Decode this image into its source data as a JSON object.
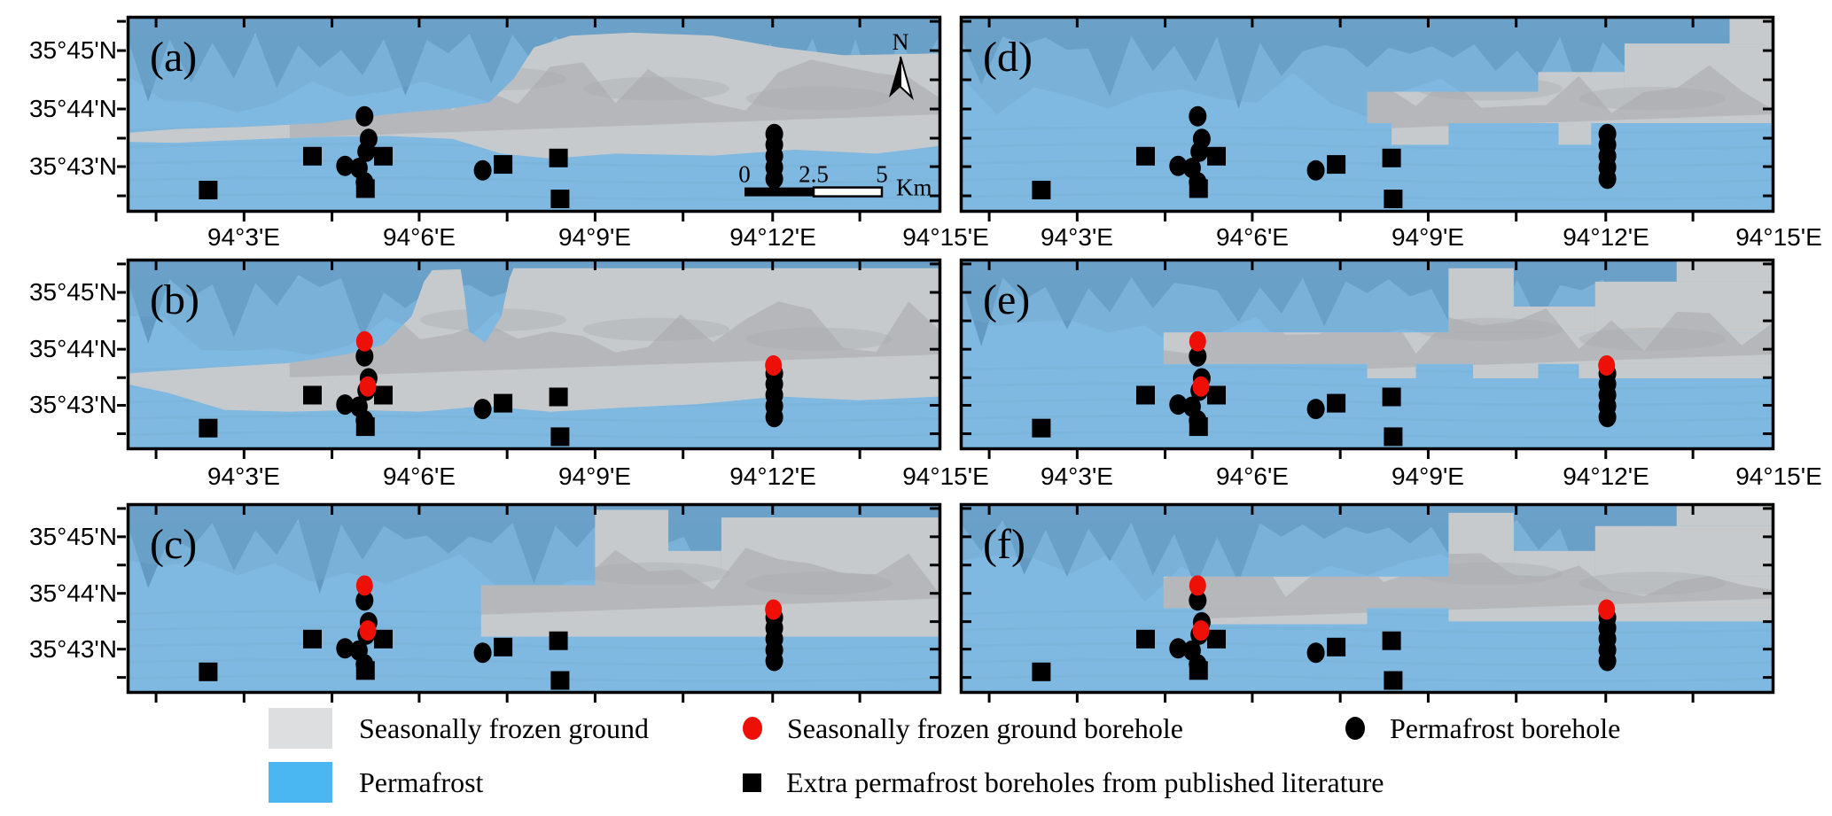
{
  "figure": {
    "description": "Six-panel permafrost distribution maps with borehole locations",
    "panel_labels": [
      "(a)",
      "(b)",
      "(c)",
      "(d)",
      "(e)",
      "(f)"
    ]
  },
  "colors": {
    "map_permafrost_blue": "#7FB8E0",
    "hillshade_dark_blue": "#5E95BF",
    "hillshade_mid_blue": "#74A9CF",
    "hillshade_light_blue": "#A8D0EC",
    "seasonal_gray": "#C7CACC",
    "hillshade_dark_gray": "#A5A8AB",
    "legend_seasonal_gray": "#DCDEDF",
    "legend_permafrost_blue": "#4AB7F3",
    "borehole_black": "#000000",
    "borehole_red": "#EE1007",
    "frame_black": "#000000"
  },
  "axes": {
    "lat_labels": [
      "35°45'N",
      "35°44'N",
      "35°43'N"
    ],
    "lat_fracs": [
      0.176,
      0.473,
      0.766
    ],
    "lat_minor_fracs": [
      0.0275,
      0.3245,
      0.6215,
      0.9145
    ],
    "lon_labels": [
      "94°3'E",
      "94°6'E",
      "94°9'E",
      "94°12'E",
      "94°15'E"
    ],
    "lon_fracs": [
      0.144,
      0.359,
      0.575,
      0.793,
      1.005
    ],
    "lon_minor_fracs": [
      0.036,
      0.252,
      0.467,
      0.683,
      0.9
    ]
  },
  "markers": {
    "permafrost_boreholes": [
      [
        0.292,
        0.51
      ],
      [
        0.297,
        0.625
      ],
      [
        0.294,
        0.69
      ],
      [
        0.268,
        0.762
      ],
      [
        0.285,
        0.773
      ],
      [
        0.292,
        0.845
      ],
      [
        0.437,
        0.785
      ],
      [
        0.795,
        0.6
      ],
      [
        0.795,
        0.655
      ],
      [
        0.795,
        0.712
      ],
      [
        0.795,
        0.77
      ],
      [
        0.795,
        0.828
      ]
    ],
    "extra_boreholes": [
      [
        0.1,
        0.885
      ],
      [
        0.228,
        0.713
      ],
      [
        0.315,
        0.713
      ],
      [
        0.293,
        0.878
      ],
      [
        0.462,
        0.755
      ],
      [
        0.53,
        0.722
      ],
      [
        0.532,
        0.93
      ]
    ],
    "seasonal_boreholes": [
      [
        0.292,
        0.432
      ],
      [
        0.296,
        0.668
      ],
      [
        0.794,
        0.558
      ]
    ]
  },
  "panels": [
    {
      "id": "a",
      "label": "(a)",
      "row": 0,
      "col": 0,
      "gray_style": "smooth",
      "show_seasonal_boreholes": false,
      "has_north_arrow": true,
      "has_scalebar": true,
      "gray_polygon": [
        [
          0,
          0.595
        ],
        [
          0.06,
          0.575
        ],
        [
          0.14,
          0.565
        ],
        [
          0.24,
          0.545
        ],
        [
          0.32,
          0.5
        ],
        [
          0.4,
          0.47
        ],
        [
          0.445,
          0.44
        ],
        [
          0.475,
          0.32
        ],
        [
          0.5,
          0.16
        ],
        [
          0.545,
          0.1
        ],
        [
          0.62,
          0.085
        ],
        [
          0.72,
          0.1
        ],
        [
          0.8,
          0.16
        ],
        [
          0.88,
          0.2
        ],
        [
          1,
          0.19
        ],
        [
          1,
          0.66
        ],
        [
          0.92,
          0.7
        ],
        [
          0.82,
          0.68
        ],
        [
          0.72,
          0.71
        ],
        [
          0.6,
          0.7
        ],
        [
          0.52,
          0.725
        ],
        [
          0.46,
          0.7
        ],
        [
          0.4,
          0.625
        ],
        [
          0.32,
          0.61
        ],
        [
          0.24,
          0.615
        ],
        [
          0.14,
          0.63
        ],
        [
          0.06,
          0.645
        ],
        [
          0,
          0.64
        ]
      ]
    },
    {
      "id": "b",
      "label": "(b)",
      "row": 1,
      "col": 0,
      "gray_style": "smooth",
      "show_seasonal_boreholes": true,
      "has_north_arrow": false,
      "has_scalebar": false,
      "gray_polygon": [
        [
          0,
          0.6
        ],
        [
          0.1,
          0.57
        ],
        [
          0.2,
          0.545
        ],
        [
          0.27,
          0.5
        ],
        [
          0.315,
          0.45
        ],
        [
          0.35,
          0.3
        ],
        [
          0.365,
          0.12
        ],
        [
          0.375,
          0.06
        ],
        [
          0.41,
          0.055
        ],
        [
          0.415,
          0.2
        ],
        [
          0.42,
          0.38
        ],
        [
          0.44,
          0.44
        ],
        [
          0.46,
          0.3
        ],
        [
          0.47,
          0.1
        ],
        [
          0.475,
          0.05
        ],
        [
          0.6,
          0.05
        ],
        [
          0.8,
          0.05
        ],
        [
          1,
          0.05
        ],
        [
          1,
          0.72
        ],
        [
          0.9,
          0.74
        ],
        [
          0.8,
          0.72
        ],
        [
          0.7,
          0.76
        ],
        [
          0.6,
          0.78
        ],
        [
          0.52,
          0.8
        ],
        [
          0.44,
          0.77
        ],
        [
          0.36,
          0.8
        ],
        [
          0.28,
          0.79
        ],
        [
          0.2,
          0.8
        ],
        [
          0.12,
          0.79
        ],
        [
          0.05,
          0.7
        ],
        [
          0,
          0.655
        ]
      ]
    },
    {
      "id": "c",
      "label": "(c)",
      "row": 2,
      "col": 0,
      "gray_style": "blocky",
      "show_seasonal_boreholes": true,
      "has_north_arrow": false,
      "has_scalebar": false,
      "gray_rects": [
        [
          0.435,
          0.43,
          0.565,
          0.27
        ],
        [
          0.575,
          0.035,
          0.09,
          0.395
        ],
        [
          0.73,
          0.075,
          0.27,
          0.355
        ],
        [
          0.655,
          0.25,
          0.075,
          0.18
        ]
      ]
    },
    {
      "id": "d",
      "label": "(d)",
      "row": 0,
      "col": 1,
      "gray_style": "blocky",
      "show_seasonal_boreholes": false,
      "has_north_arrow": false,
      "has_scalebar": false,
      "gray_rects": [
        [
          0.5,
          0.385,
          0.21,
          0.16
        ],
        [
          0.71,
          0.285,
          0.106,
          0.26
        ],
        [
          0.816,
          0.14,
          0.184,
          0.405
        ],
        [
          0.945,
          0,
          0.055,
          0.14
        ],
        [
          0.53,
          0.545,
          0.07,
          0.11
        ],
        [
          0.735,
          0.545,
          0.04,
          0.11
        ]
      ]
    },
    {
      "id": "e",
      "label": "(e)",
      "row": 1,
      "col": 1,
      "gray_style": "blocky",
      "show_seasonal_boreholes": true,
      "has_north_arrow": false,
      "has_scalebar": false,
      "gray_rects": [
        [
          0.25,
          0.385,
          0.75,
          0.165
        ],
        [
          0.6,
          0.05,
          0.08,
          0.335
        ],
        [
          0.68,
          0.25,
          0.1,
          0.135
        ],
        [
          0.78,
          0.12,
          0.22,
          0.265
        ],
        [
          0.88,
          0,
          0.12,
          0.12
        ],
        [
          0.63,
          0.55,
          0.08,
          0.075
        ],
        [
          0.76,
          0.55,
          0.24,
          0.075
        ],
        [
          0.5,
          0.55,
          0.06,
          0.075
        ]
      ]
    },
    {
      "id": "f",
      "label": "(f)",
      "row": 2,
      "col": 1,
      "gray_style": "blocky",
      "show_seasonal_boreholes": true,
      "has_north_arrow": false,
      "has_scalebar": false,
      "gray_rects": [
        [
          0.25,
          0.385,
          0.75,
          0.165
        ],
        [
          0.6,
          0.05,
          0.08,
          0.335
        ],
        [
          0.68,
          0.25,
          0.1,
          0.135
        ],
        [
          0.78,
          0.12,
          0.22,
          0.265
        ],
        [
          0.88,
          0,
          0.12,
          0.12
        ],
        [
          0.3,
          0.55,
          0.2,
          0.085
        ],
        [
          0.6,
          0.55,
          0.4,
          0.07
        ]
      ]
    }
  ],
  "north_arrow_label": "N",
  "scalebar": {
    "tick_labels": [
      "0",
      "2.5",
      "5"
    ],
    "unit": "Km"
  },
  "legend": {
    "rows": [
      [
        {
          "type": "swatch",
          "color_key": "legend_seasonal_gray",
          "label": "Seasonally frozen ground"
        },
        {
          "type": "dot",
          "color_key": "borehole_red",
          "label": "Seasonally frozen ground borehole"
        },
        {
          "type": "dot",
          "color_key": "borehole_black",
          "label": "Permafrost borehole"
        }
      ],
      [
        {
          "type": "swatch",
          "color_key": "legend_permafrost_blue",
          "label": "Permafrost"
        },
        {
          "type": "square",
          "color_key": "borehole_black",
          "label": "Extra permafrost boreholes from published literature"
        }
      ]
    ]
  }
}
